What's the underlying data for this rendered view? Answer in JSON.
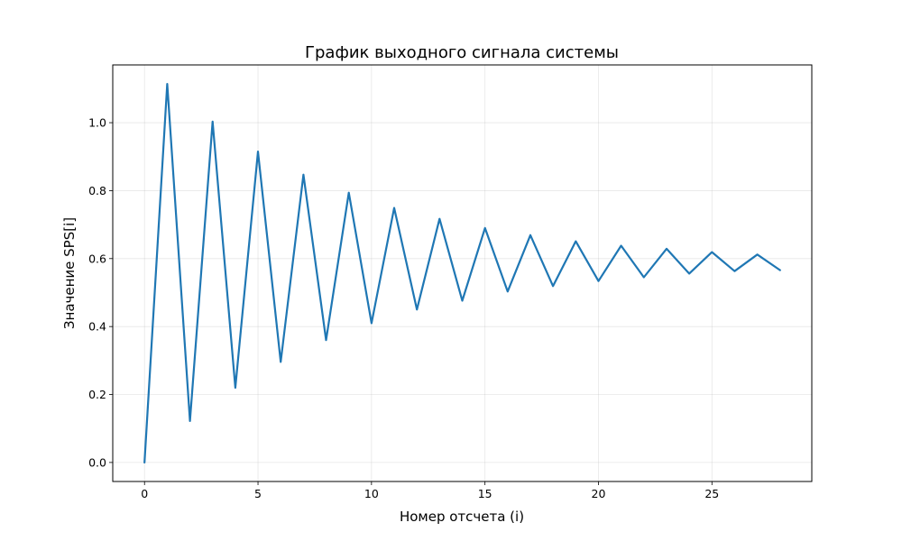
{
  "chart_data": {
    "type": "line",
    "title": "График выходного сигнала системы",
    "xlabel": "Номер отсчета (i)",
    "ylabel": "Значение SPS[i]",
    "xlim": [
      -1.4,
      29.4
    ],
    "ylim": [
      -0.056,
      1.17
    ],
    "grid": true,
    "legend": null,
    "x_ticks": [
      0,
      5,
      10,
      15,
      20,
      25
    ],
    "x_tick_labels": [
      "0",
      "5",
      "10",
      "15",
      "20",
      "25"
    ],
    "y_ticks": [
      0.0,
      0.2,
      0.4,
      0.6,
      0.8,
      1.0
    ],
    "y_tick_labels": [
      "0.0",
      "0.2",
      "0.4",
      "0.6",
      "0.8",
      "1.0"
    ],
    "series": [
      {
        "name": "SPS",
        "color": "#1f77b4",
        "x": [
          0,
          1,
          2,
          3,
          4,
          5,
          6,
          7,
          8,
          9,
          10,
          11,
          12,
          13,
          14,
          15,
          16,
          17,
          18,
          19,
          20,
          21,
          22,
          23,
          24,
          25,
          26,
          27,
          28
        ],
        "values": [
          0.0,
          1.114,
          0.122,
          1.003,
          0.22,
          0.915,
          0.296,
          0.847,
          0.36,
          0.794,
          0.41,
          0.749,
          0.45,
          0.717,
          0.476,
          0.69,
          0.503,
          0.669,
          0.519,
          0.651,
          0.534,
          0.638,
          0.545,
          0.629,
          0.556,
          0.619,
          0.563,
          0.612,
          0.566
        ]
      }
    ]
  }
}
